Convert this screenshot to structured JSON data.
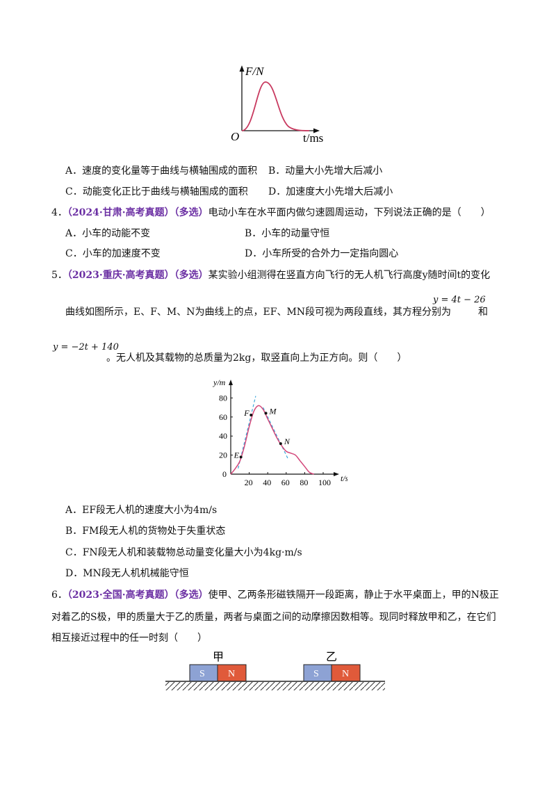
{
  "fig1": {
    "y_axis_label": "F/N",
    "x_axis_label": "t/ms",
    "origin_label": "O",
    "curve_color": "#c8395f",
    "chart_data": {
      "type": "line",
      "title": "",
      "xlabel": "t/ms",
      "ylabel": "F/N",
      "description_shape": "single bell-shaped curve starting and ending at zero"
    }
  },
  "q3_options": {
    "A": "A．速度的变化量等于曲线与横轴围成的面积",
    "B": "B．动量大小先增大后减小",
    "C": "C．动能变化正比于曲线与横轴围成的面积",
    "D": "D．加速度大小先增大后减小"
  },
  "q4": {
    "number": "4．",
    "source": "（2024·甘肃·高考真题）",
    "tag": "（多选）",
    "stem": "电动小车在水平面内做匀速圆周运动，下列说法正确的是（　　）",
    "options": {
      "A": "A．小车的动能不变",
      "B": "B．小车的动量守恒",
      "C": "C．小车的加速度不变",
      "D": "D．小车所受的合外力一定指向圆心"
    }
  },
  "q5": {
    "number": "5．",
    "source": "（2023·重庆·高考真题）",
    "tag": "（多选）",
    "stem_line1": "某实验小组测得在竖直方向飞行的无人机飞行高度y随时间t的变化",
    "stem_line2": "曲线如图所示，E、F、M、N为曲线上的点，EF、MN段可视为两段直线，其方程分别为",
    "eq1": "y = 4t − 26",
    "and": "和",
    "eq2": "y = −2t + 140",
    "stem_line3": "。无人机及其载物的总质量为2kg，取竖直向上为正方向。则（　　）",
    "options": {
      "A": "A．EF段无人机的速度大小为4m/s",
      "B": "B．FM段无人机的货物处于失重状态",
      "C": "C．FN段无人机和装载物总动量变化量大小为4kg·m/s",
      "D": "D．MN段无人机机械能守恒"
    },
    "chart_data": {
      "type": "line",
      "title": "",
      "xlabel": "t/s",
      "ylabel": "y/m",
      "xlim": [
        0,
        110
      ],
      "ylim": [
        0,
        80
      ],
      "x_ticks": [
        0,
        20,
        40,
        60,
        80,
        100
      ],
      "y_ticks": [
        20,
        40,
        60,
        80
      ],
      "curve": {
        "x": [
          0,
          5,
          10,
          15,
          20,
          25,
          30,
          35,
          40,
          45,
          50,
          55,
          60,
          65,
          70,
          75,
          80,
          85,
          90
        ],
        "y": [
          0,
          6,
          14,
          30,
          50,
          66,
          72,
          68,
          58,
          48,
          38,
          30,
          24,
          22,
          20,
          14,
          8,
          2,
          0
        ]
      },
      "points": [
        {
          "label": "E",
          "x": 11,
          "y": 18
        },
        {
          "label": "F",
          "x": 22,
          "y": 62
        },
        {
          "label": "M",
          "x": 38,
          "y": 64
        },
        {
          "label": "N",
          "x": 54,
          "y": 32
        }
      ],
      "dashed_lines": [
        {
          "name": "y=4t−26",
          "x": [
            8,
            27
          ]
        },
        {
          "name": "y=−2t+140",
          "x": [
            35,
            62
          ]
        }
      ],
      "curve_color": "#d3477a",
      "dash_color": "#3ba7d9"
    }
  },
  "q6": {
    "number": "6．",
    "source": "（2023·全国·高考真题）",
    "tag": "（多选）",
    "stem_line1": "使甲、乙两条形磁铁隔开一段距离，静止于水平桌面上，甲的N极正",
    "stem_line2": "对着乙的S极，甲的质量大于乙的质量，两者与桌面之间的动摩擦因数相等。现同时释放甲和乙，在它们",
    "stem_line3": "相互接近过程中的任一时刻（　　）",
    "magnet_jia": "甲",
    "magnet_yi": "乙",
    "pole_s": "S",
    "pole_n": "N",
    "s_color": "#8da2d4",
    "n_color": "#e05a3a"
  }
}
